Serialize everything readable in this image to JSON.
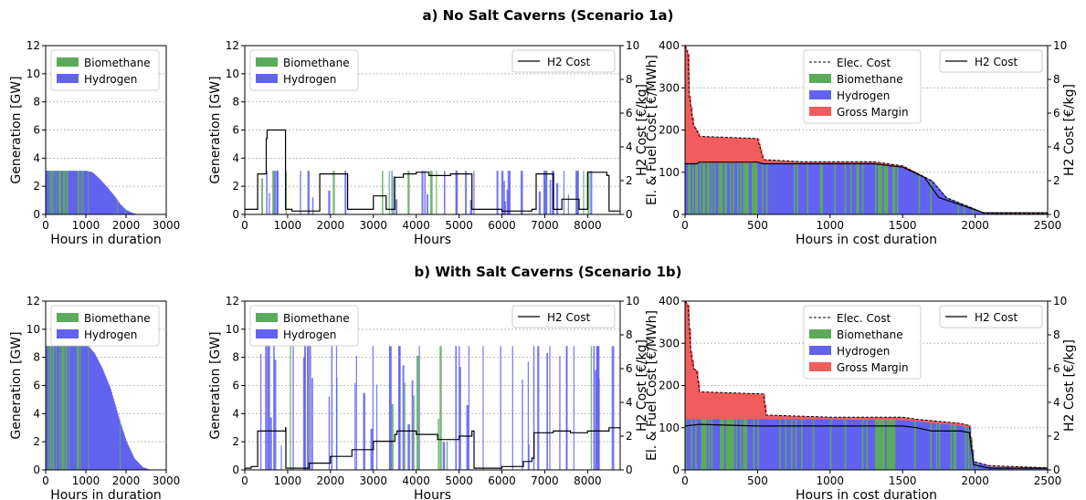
{
  "colors": {
    "biomethane": "#5cab5c",
    "hydrogen": "#6262f0",
    "gross_margin": "#f25c5c",
    "h2cost": "#000000",
    "grid": "#bbbbbb"
  },
  "rows": [
    {
      "title": "a) No Salt Caverns (Scenario 1a)"
    },
    {
      "title": "b) With Salt Caverns (Scenario 1b)"
    }
  ],
  "chart_data": [
    {
      "id": "1a-duration",
      "type": "area",
      "row": 0,
      "col": 0,
      "xlabel": "Hours in duration",
      "ylabel": "Generation [GW]",
      "xlim": [
        0,
        3000
      ],
      "ylim": [
        0,
        12
      ],
      "xticks": [
        "0",
        "1000",
        "2000",
        "3000"
      ],
      "yticks": [
        "0",
        "2",
        "4",
        "6",
        "8",
        "10",
        "12"
      ],
      "grid": "horizontal-dotted",
      "legend": "top-left",
      "series": [
        {
          "name": "Biomethane",
          "color_key": "biomethane"
        },
        {
          "name": "Hydrogen",
          "color_key": "hydrogen",
          "x": [
            0,
            1000,
            1150,
            1300,
            1500,
            1700,
            1850,
            2000,
            2150,
            2300
          ],
          "y": [
            3.1,
            3.1,
            3.0,
            2.6,
            2.0,
            1.3,
            0.7,
            0.3,
            0.1,
            0
          ]
        }
      ]
    },
    {
      "id": "1a-timeseries",
      "type": "bar",
      "row": 0,
      "col": 1,
      "xlabel": "Hours",
      "ylabel": "Generation [GW]",
      "y2label": "H2 Cost [€/kg]",
      "xlim": [
        0,
        8760
      ],
      "ylim": [
        0,
        12
      ],
      "y2lim": [
        0,
        10
      ],
      "xticks": [
        "0",
        "1000",
        "2000",
        "3000",
        "4000",
        "5000",
        "6000",
        "7000",
        "8000"
      ],
      "yticks": [
        "0",
        "2",
        "4",
        "6",
        "8",
        "10",
        "12"
      ],
      "y2ticks": [
        "0",
        "2",
        "4",
        "6",
        "8",
        "10"
      ],
      "grid": "horizontal-dotted",
      "legend": "top-left",
      "legend2": "top-right",
      "series": [
        {
          "name": "Biomethane",
          "color_key": "biomethane"
        },
        {
          "name": "Hydrogen",
          "color_key": "hydrogen"
        },
        {
          "name": "H2 Cost",
          "color_key": "h2cost",
          "x": [
            0,
            150,
            300,
            450,
            500,
            520,
            900,
            950,
            1100,
            1700,
            1750,
            2200,
            2400,
            2800,
            3000,
            3150,
            3300,
            3450,
            3500,
            3700,
            4000,
            4300,
            4500,
            4800,
            5000,
            5250,
            5300,
            6000,
            6700,
            6800,
            7100,
            7200,
            7400,
            7600,
            7800,
            8000,
            8300,
            8450,
            8500,
            8760
          ],
          "y": [
            0.3,
            0.3,
            2.4,
            2.4,
            4.5,
            5.0,
            5.0,
            0.3,
            0.2,
            0.2,
            2.4,
            2.4,
            0.3,
            0.3,
            1.1,
            1.1,
            0.3,
            0.3,
            2.2,
            2.4,
            2.5,
            2.3,
            2.3,
            2.4,
            2.4,
            2.4,
            0.3,
            0.2,
            0.3,
            2.4,
            2.4,
            0.3,
            0.9,
            0.9,
            0.3,
            2.5,
            2.5,
            2.3,
            0.2,
            0.2
          ]
        }
      ]
    },
    {
      "id": "1a-cost-duration",
      "type": "area",
      "row": 0,
      "col": 2,
      "xlabel": "Hours in cost duration",
      "ylabel": "El. & Fuel Cost [€/MWh]",
      "y2label": "H2 Cost [€/kg]",
      "xlim": [
        0,
        2500
      ],
      "ylim": [
        0,
        400
      ],
      "y2lim": [
        0,
        10
      ],
      "xticks": [
        "0",
        "500",
        "1000",
        "1500",
        "2000",
        "2500"
      ],
      "yticks": [
        "0",
        "100",
        "200",
        "300",
        "400"
      ],
      "y2ticks": [
        "0",
        "2",
        "4",
        "6",
        "8",
        "10"
      ],
      "grid": "horizontal-dotted",
      "legend": "top-center",
      "legend2": "top-right",
      "series": [
        {
          "name": "Elec. Cost",
          "color_key": "h2cost",
          "x": [
            0,
            20,
            30,
            50,
            60,
            80,
            100,
            500,
            540,
            800,
            1300,
            1500,
            1700,
            1800,
            2000,
            2060,
            2500
          ],
          "y": [
            400,
            380,
            280,
            230,
            210,
            200,
            185,
            180,
            130,
            125,
            125,
            115,
            80,
            40,
            12,
            3,
            2
          ]
        },
        {
          "name": "Biomethane",
          "color_key": "biomethane"
        },
        {
          "name": "Hydrogen",
          "color_key": "hydrogen",
          "x": [
            0,
            540,
            800,
            1300,
            1500,
            1700,
            1800,
            2000,
            2060,
            2500
          ],
          "y": [
            122,
            122,
            122,
            122,
            110,
            80,
            40,
            12,
            3,
            0
          ]
        },
        {
          "name": "Gross Margin",
          "color_key": "gross_margin"
        },
        {
          "name": "H2 Cost",
          "color_key": "h2cost",
          "x": [
            0,
            80,
            100,
            500,
            540,
            800,
            1300,
            1500,
            1650,
            1750,
            2060,
            2500
          ],
          "y": [
            3.0,
            3.0,
            3.1,
            3.1,
            3.0,
            3.0,
            3.0,
            2.8,
            2.2,
            1.0,
            0.1,
            0.1
          ]
        }
      ]
    },
    {
      "id": "1b-duration",
      "type": "area",
      "row": 1,
      "col": 0,
      "xlabel": "Hours in duration",
      "ylabel": "Generation [GW]",
      "xlim": [
        0,
        3000
      ],
      "ylim": [
        0,
        12
      ],
      "xticks": [
        "0",
        "1000",
        "2000",
        "3000"
      ],
      "yticks": [
        "0",
        "2",
        "4",
        "6",
        "8",
        "10",
        "12"
      ],
      "grid": "horizontal-dotted",
      "legend": "top-left",
      "series": [
        {
          "name": "Biomethane",
          "color_key": "biomethane"
        },
        {
          "name": "Hydrogen",
          "color_key": "hydrogen",
          "x": [
            0,
            1050,
            1200,
            1400,
            1600,
            1800,
            2000,
            2200,
            2400,
            2600
          ],
          "y": [
            8.8,
            8.8,
            8.3,
            7.2,
            5.8,
            3.8,
            2.0,
            0.8,
            0.2,
            0
          ]
        }
      ]
    },
    {
      "id": "1b-timeseries",
      "type": "bar",
      "row": 1,
      "col": 1,
      "xlabel": "Hours",
      "ylabel": "Generation [GW]",
      "y2label": "H2 Cost [€/kg]",
      "xlim": [
        0,
        8760
      ],
      "ylim": [
        0,
        12
      ],
      "y2lim": [
        0,
        10
      ],
      "xticks": [
        "0",
        "1000",
        "2000",
        "3000",
        "4000",
        "5000",
        "6000",
        "7000",
        "8000"
      ],
      "yticks": [
        "0",
        "2",
        "4",
        "6",
        "8",
        "10",
        "12"
      ],
      "y2ticks": [
        "0",
        "2",
        "4",
        "6",
        "8",
        "10"
      ],
      "grid": "horizontal-dotted",
      "legend": "top-left",
      "legend2": "top-right",
      "series": [
        {
          "name": "Biomethane",
          "color_key": "biomethane"
        },
        {
          "name": "Hydrogen",
          "color_key": "hydrogen"
        },
        {
          "name": "H2 Cost",
          "color_key": "h2cost",
          "x": [
            0,
            150,
            300,
            950,
            960,
            1500,
            2000,
            2500,
            3000,
            3500,
            3550,
            4000,
            4500,
            5000,
            5300,
            5350,
            6000,
            6500,
            6700,
            6750,
            7200,
            7600,
            8000,
            8500,
            8760
          ],
          "y": [
            0.1,
            0.2,
            2.3,
            2.5,
            0.1,
            0.4,
            0.8,
            1.2,
            1.7,
            2.1,
            2.3,
            2.1,
            1.8,
            2.0,
            2.3,
            0.1,
            0.2,
            0.5,
            0.7,
            2.2,
            2.3,
            2.2,
            2.3,
            2.5,
            2.4
          ]
        }
      ]
    },
    {
      "id": "1b-cost-duration",
      "type": "area",
      "row": 1,
      "col": 2,
      "xlabel": "Hours in cost duration",
      "ylabel": "El. & Fuel Cost [€/MWh]",
      "y2label": "H2 Cost [€/kg]",
      "xlim": [
        0,
        2500
      ],
      "ylim": [
        0,
        400
      ],
      "y2lim": [
        0,
        10
      ],
      "xticks": [
        "0",
        "500",
        "1000",
        "1500",
        "2000",
        "2500"
      ],
      "yticks": [
        "0",
        "100",
        "200",
        "300",
        "400"
      ],
      "y2ticks": [
        "0",
        "2",
        "4",
        "6",
        "8",
        "10"
      ],
      "grid": "horizontal-dotted",
      "legend": "top-center",
      "legend2": "top-right",
      "series": [
        {
          "name": "Elec. Cost",
          "color_key": "h2cost",
          "x": [
            0,
            20,
            40,
            60,
            80,
            100,
            540,
            560,
            1000,
            1500,
            1600,
            1900,
            1960,
            1990,
            2100,
            2500
          ],
          "y": [
            400,
            390,
            280,
            240,
            235,
            185,
            180,
            130,
            125,
            125,
            120,
            110,
            105,
            20,
            10,
            5
          ]
        },
        {
          "name": "Biomethane",
          "color_key": "biomethane"
        },
        {
          "name": "Hydrogen",
          "color_key": "hydrogen",
          "x": [
            0,
            560,
            1000,
            1500,
            1600,
            1900,
            1960,
            1990,
            2100,
            2500
          ],
          "y": [
            120,
            120,
            120,
            118,
            115,
            105,
            100,
            20,
            8,
            3
          ]
        },
        {
          "name": "Gross Margin",
          "color_key": "gross_margin"
        },
        {
          "name": "H2 Cost",
          "color_key": "h2cost",
          "x": [
            0,
            100,
            500,
            560,
            1000,
            1500,
            1600,
            1700,
            1900,
            1960,
            1990,
            2100,
            2500
          ],
          "y": [
            2.6,
            2.7,
            2.6,
            2.6,
            2.6,
            2.6,
            2.5,
            2.3,
            2.3,
            2.2,
            0.3,
            0.1,
            0.1
          ]
        }
      ]
    }
  ]
}
